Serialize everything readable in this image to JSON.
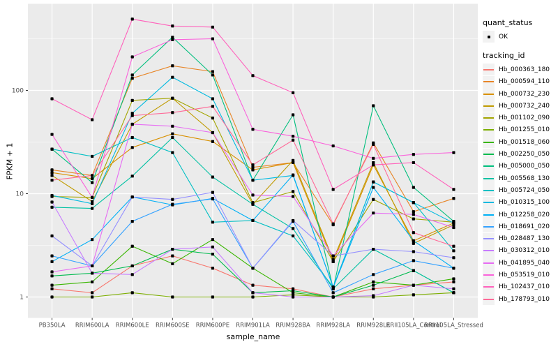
{
  "legend": {
    "quant_status_title": "quant_status",
    "quant_status_value": "OK",
    "tracking_title": "tracking_id"
  },
  "style": {
    "panel_bg": "#EBEBEB",
    "grid_color": "#FFFFFF",
    "key_bg": "#F2F2F2",
    "tick_mark_color": "#333333",
    "tick_label_color": "#4D4D4D",
    "marker_color": "#000000"
  },
  "chart_data": {
    "type": "line",
    "title": "",
    "xlabel": "sample_name",
    "ylabel": "FPKM + 1",
    "y_scale": "log10",
    "y_ticks": [
      1,
      10,
      100
    ],
    "ylim": [
      0.9,
      600
    ],
    "grid": true,
    "legend_position": "right",
    "marker": "black-point",
    "quant_status": "OK",
    "x_categories": [
      "PB350LA",
      "RRIM600LA",
      "RRIM600LE",
      "RRIM600SE",
      "RRIM600PE",
      "RRIM901LA",
      "RRIM928BA",
      "RRIM928LA",
      "RRIM928LE",
      "RRII105LA_Control",
      "RRII105LA_Stressed"
    ],
    "series": [
      {
        "name": "Hb_000363_180",
        "color": "#F8766D",
        "values": [
          1.2,
          1.1,
          2.0,
          2.5,
          1.9,
          1.3,
          1.2,
          1.0,
          1.2,
          1.3,
          1.4
        ]
      },
      {
        "name": "Hb_000594_110",
        "color": "#E88526",
        "values": [
          17,
          15,
          131,
          173,
          152,
          18,
          20,
          5.0,
          31,
          6.7,
          9.0
        ]
      },
      {
        "name": "Hb_000732_230",
        "color": "#D89000",
        "values": [
          16,
          14,
          28,
          38,
          32,
          17,
          20,
          2.2,
          19,
          3.5,
          5.2
        ]
      },
      {
        "name": "Hb_000732_240",
        "color": "#C09B00",
        "values": [
          15,
          8.4,
          47,
          84,
          39,
          7.9,
          21,
          2.3,
          20,
          3.3,
          5.0
        ]
      },
      {
        "name": "Hb_001102_090",
        "color": "#A3A500",
        "values": [
          9.4,
          9.2,
          80,
          84,
          54,
          8.2,
          10.5,
          2.2,
          8.8,
          5.7,
          5.3
        ]
      },
      {
        "name": "Hb_001255_010",
        "color": "#7CAE00",
        "values": [
          1.0,
          1.0,
          1.1,
          1.0,
          1.0,
          1.0,
          1.05,
          1.0,
          1.0,
          1.05,
          1.1
        ]
      },
      {
        "name": "Hb_001518_060",
        "color": "#39B600",
        "values": [
          1.3,
          1.4,
          3.1,
          2.1,
          3.6,
          1.9,
          1.1,
          1.0,
          1.4,
          1.3,
          1.5
        ]
      },
      {
        "name": "Hb_002250_050",
        "color": "#00BB4E",
        "values": [
          1.6,
          1.7,
          2.0,
          2.9,
          2.6,
          1.1,
          1.15,
          1.0,
          1.3,
          1.8,
          1.1
        ]
      },
      {
        "name": "Hb_005000_050",
        "color": "#00BF7D",
        "values": [
          27,
          12.8,
          141,
          327,
          141,
          13.5,
          58,
          1.2,
          71,
          11.5,
          5.4
        ]
      },
      {
        "name": "Hb_005568_130",
        "color": "#00C1A3",
        "values": [
          7.4,
          7.2,
          14.8,
          35,
          14.5,
          7.9,
          4.6,
          1.2,
          2.9,
          1.8,
          1.1
        ]
      },
      {
        "name": "Hb_005724_050",
        "color": "#00BFC4",
        "values": [
          27,
          23,
          35,
          25,
          5.3,
          5.5,
          3.9,
          1.25,
          13,
          8.2,
          2.8
        ]
      },
      {
        "name": "Hb_010315_100",
        "color": "#00BAE0",
        "values": [
          9.6,
          8.0,
          60,
          134,
          83,
          13.5,
          15,
          1.25,
          13,
          8.2,
          5.2
        ]
      },
      {
        "name": "Hb_012258_020",
        "color": "#00B0F6",
        "values": [
          2.2,
          3.6,
          9.3,
          7.8,
          9.0,
          5.5,
          15.2,
          1.24,
          11.5,
          3.5,
          1.9
        ]
      },
      {
        "name": "Hb_018691_020",
        "color": "#35A2FF",
        "values": [
          2.5,
          2.0,
          5.4,
          7.9,
          8.9,
          1.9,
          5.4,
          1.1,
          1.65,
          2.25,
          1.9
        ]
      },
      {
        "name": "Hb_028487_130",
        "color": "#9590FF",
        "values": [
          3.9,
          2.0,
          9.3,
          8.8,
          10.3,
          1.9,
          5.5,
          2.5,
          2.9,
          2.75,
          2.4
        ]
      },
      {
        "name": "Hb_030312_010",
        "color": "#C77CFF",
        "values": [
          8.3,
          1.7,
          1.65,
          2.9,
          3.05,
          1.1,
          1.0,
          1.0,
          1.03,
          1.3,
          1.2
        ]
      },
      {
        "name": "Hb_041895_040",
        "color": "#E76BF3",
        "values": [
          1.75,
          2.0,
          47,
          45,
          39,
          9.7,
          9.4,
          2.5,
          6.5,
          6.3,
          4.7
        ]
      },
      {
        "name": "Hb_053519_010",
        "color": "#FA62DB",
        "values": [
          37.5,
          9.2,
          211,
          310,
          316,
          42,
          36,
          29,
          22,
          24,
          25
        ]
      },
      {
        "name": "Hb_102437_010",
        "color": "#FF62BC",
        "values": [
          83,
          52,
          490,
          420,
          410,
          139,
          95,
          11,
          19,
          20,
          11
        ]
      },
      {
        "name": "Hb_178793_010",
        "color": "#FF6A98",
        "values": [
          13.5,
          15,
          57,
          61,
          70,
          19,
          33,
          5.1,
          30,
          4.2,
          3.1
        ]
      }
    ]
  }
}
